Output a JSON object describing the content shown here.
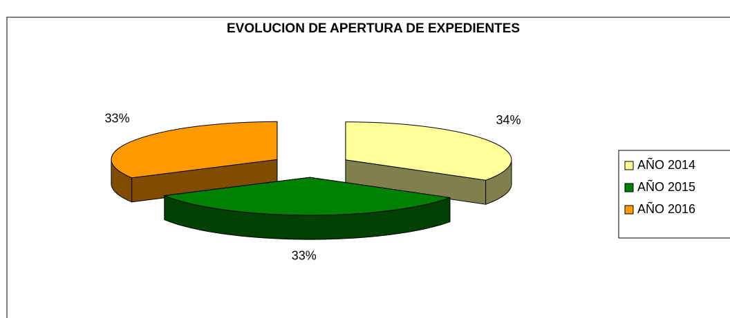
{
  "chart_data": {
    "type": "pie3d",
    "title": "EVOLUCION DE APERTURA DE EXPEDIENTES",
    "categories": [
      "AÑO 2014",
      "AÑO 2015",
      "AÑO 2016"
    ],
    "values": [
      34,
      33,
      33
    ],
    "value_labels": [
      "34%",
      "33%",
      "33%"
    ],
    "colors": [
      "#ffff99",
      "#008000",
      "#ff9900"
    ],
    "legend": "right"
  }
}
